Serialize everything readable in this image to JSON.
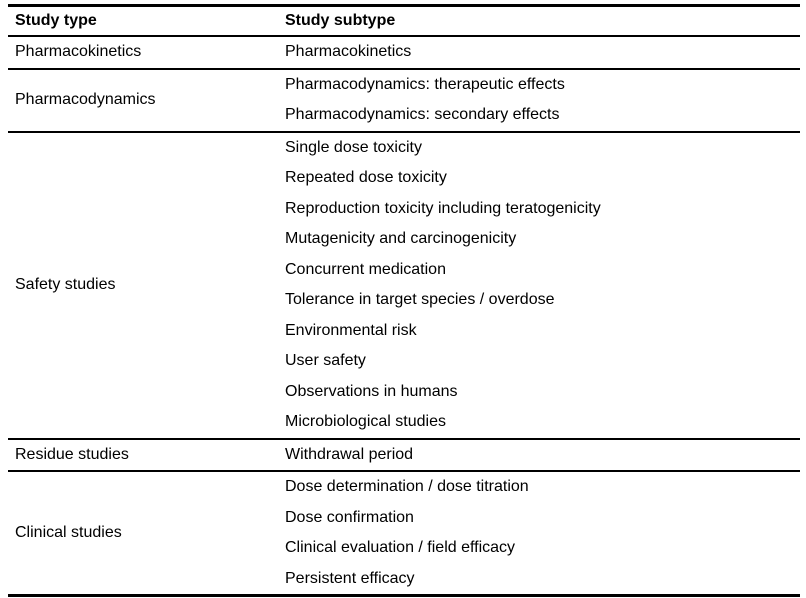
{
  "table": {
    "headers": [
      "Study type",
      "Study subtype"
    ],
    "groups": [
      {
        "type": "Pharmacokinetics",
        "subtypes": [
          "Pharmacokinetics"
        ]
      },
      {
        "type": "Pharmacodynamics",
        "subtypes": [
          "Pharmacodynamics: therapeutic effects",
          "Pharmacodynamics: secondary effects"
        ]
      },
      {
        "type": "Safety studies",
        "subtypes": [
          "Single dose toxicity",
          "Repeated dose toxicity",
          "Reproduction toxicity including teratogenicity",
          "Mutagenicity and carcinogenicity",
          "Concurrent medication",
          "Tolerance in target species / overdose",
          "Environmental risk",
          "User safety",
          "Observations in humans",
          "Microbiological studies"
        ]
      },
      {
        "type": "Residue studies",
        "subtypes": [
          "Withdrawal period"
        ]
      },
      {
        "type": "Clinical studies",
        "subtypes": [
          "Dose determination / dose titration",
          "Dose confirmation",
          "Clinical evaluation / field efficacy",
          "Persistent efficacy"
        ]
      }
    ],
    "colors": {
      "text": "#000000",
      "rule": "#000000",
      "background": "#ffffff"
    }
  }
}
